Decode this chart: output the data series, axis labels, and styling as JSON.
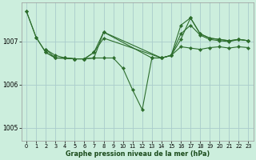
{
  "xlabel": "Graphe pression niveau de la mer (hPa)",
  "background_color": "#cceedd",
  "grid_color": "#aacccc",
  "line_color": "#2d6e2d",
  "marker_color": "#2d6e2d",
  "ylim": [
    1004.7,
    1007.9
  ],
  "yticks": [
    1005,
    1006,
    1007
  ],
  "xticks": [
    0,
    1,
    2,
    3,
    4,
    5,
    6,
    7,
    8,
    9,
    10,
    11,
    12,
    13,
    14,
    15,
    16,
    17,
    18,
    19,
    20,
    21,
    22,
    23
  ],
  "series": [
    {
      "x": [
        0,
        1,
        2,
        3,
        4,
        5,
        6,
        7,
        8,
        9,
        10,
        11,
        12,
        13,
        14,
        15,
        16,
        17,
        18,
        19,
        20,
        21,
        22,
        23
      ],
      "y": [
        1007.7,
        1007.1,
        1006.75,
        1006.62,
        1006.62,
        1006.6,
        1006.6,
        1006.62,
        1006.62,
        1006.62,
        1006.38,
        1005.88,
        1005.42,
        1006.62,
        1006.62,
        1006.68,
        1006.88,
        1006.85,
        1006.82,
        1006.86,
        1006.88,
        1006.85,
        1006.88,
        1006.86
      ]
    },
    {
      "x": [
        0,
        1,
        2,
        3,
        4,
        5,
        6,
        7,
        8,
        13,
        14,
        15,
        16,
        17,
        18,
        19,
        20,
        21,
        22,
        23
      ],
      "y": [
        1007.7,
        1007.1,
        1006.75,
        1006.62,
        1006.62,
        1006.6,
        1006.6,
        1006.62,
        1007.22,
        1006.62,
        1006.62,
        1006.68,
        1007.05,
        1007.55,
        1007.18,
        1007.08,
        1007.05,
        1007.02,
        1007.05,
        1007.02
      ]
    },
    {
      "x": [
        2,
        3,
        4,
        5,
        6,
        7,
        8,
        14,
        15,
        16,
        17,
        18,
        19,
        20,
        21,
        22,
        23
      ],
      "y": [
        1006.82,
        1006.68,
        1006.62,
        1006.6,
        1006.6,
        1006.75,
        1007.22,
        1006.62,
        1006.68,
        1007.38,
        1007.55,
        1007.18,
        1007.08,
        1007.05,
        1007.02,
        1007.05,
        1007.02
      ]
    },
    {
      "x": [
        2,
        3,
        5,
        6,
        7,
        8,
        14,
        15,
        16,
        17,
        18,
        19,
        20,
        21,
        22,
        23
      ],
      "y": [
        1006.82,
        1006.62,
        1006.6,
        1006.6,
        1006.75,
        1007.08,
        1006.62,
        1006.68,
        1007.18,
        1007.38,
        1007.15,
        1007.05,
        1007.02,
        1007.0,
        1007.05,
        1007.02
      ]
    }
  ]
}
